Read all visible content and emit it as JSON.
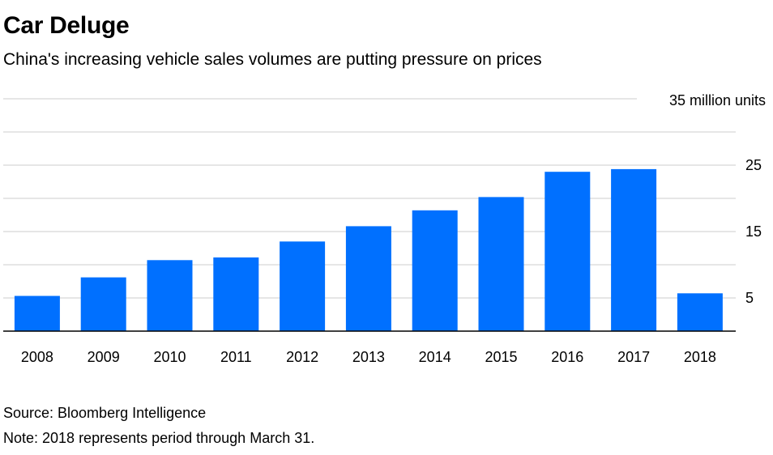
{
  "chart_data": {
    "type": "bar",
    "title": "Car Deluge",
    "subtitle": "China's increasing vehicle sales volumes are putting pressure on prices",
    "unit_label": "35 million units",
    "categories": [
      "2008",
      "2009",
      "2010",
      "2011",
      "2012",
      "2013",
      "2014",
      "2015",
      "2016",
      "2017",
      "2018"
    ],
    "values": [
      5.3,
      8.1,
      10.7,
      11.1,
      13.5,
      15.8,
      18.2,
      20.2,
      24.0,
      24.4,
      5.7
    ],
    "ylim": [
      0,
      35
    ],
    "yticks": [
      5,
      15,
      25
    ],
    "gridlines": [
      5,
      10,
      15,
      20,
      25,
      30,
      35
    ],
    "xlabel": "",
    "ylabel": "",
    "bar_color": "#0070ff",
    "grid_color": "#e6e6e6"
  },
  "source": "Source: Bloomberg Intelligence",
  "note": "Note: 2018 represents period through March 31."
}
